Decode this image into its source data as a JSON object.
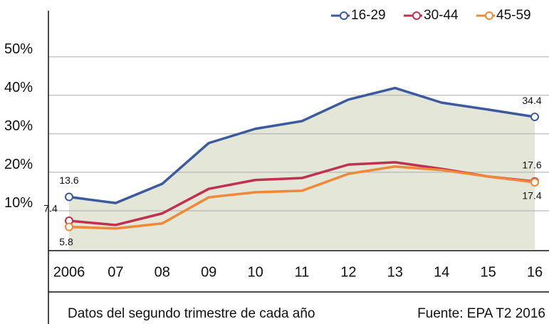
{
  "chart_data": {
    "type": "line",
    "categories": [
      "2006",
      "07",
      "08",
      "09",
      "10",
      "11",
      "12",
      "13",
      "14",
      "15",
      "16"
    ],
    "series": [
      {
        "name": "16-29",
        "color": "#3d5a9e",
        "values": [
          13.6,
          12.0,
          17.0,
          27.6,
          31.3,
          33.3,
          38.9,
          41.9,
          38.1,
          36.3,
          34.4
        ],
        "value_labels": [
          "13.6",
          null,
          null,
          null,
          null,
          null,
          null,
          null,
          null,
          null,
          "34.4"
        ]
      },
      {
        "name": "30-44",
        "color": "#c2304f",
        "values": [
          7.4,
          6.3,
          9.3,
          15.7,
          18.0,
          18.5,
          22.0,
          22.6,
          20.9,
          18.9,
          17.6
        ],
        "value_labels": [
          "7.4",
          null,
          null,
          null,
          null,
          null,
          null,
          null,
          null,
          null,
          "17.6"
        ]
      },
      {
        "name": "45-59",
        "color": "#f0883a",
        "values": [
          5.8,
          5.4,
          6.7,
          13.5,
          14.8,
          15.2,
          19.6,
          21.5,
          20.6,
          18.9,
          17.4
        ],
        "value_labels": [
          "5.8",
          null,
          null,
          null,
          null,
          null,
          null,
          null,
          null,
          null,
          "17.4"
        ]
      }
    ],
    "area_color": "#e4e6d7",
    "ylim": [
      0,
      62
    ],
    "yticks": [
      {
        "value": 10,
        "label": "10%"
      },
      {
        "value": 20,
        "label": "20%"
      },
      {
        "value": 30,
        "label": "30%"
      },
      {
        "value": 40,
        "label": "40%"
      },
      {
        "value": 50,
        "label": "50%"
      }
    ],
    "grid": true,
    "legend": "top-right",
    "footnote": "Datos del segundo trimestre de cada año",
    "source": "Fuente: EPA T2 2016"
  }
}
